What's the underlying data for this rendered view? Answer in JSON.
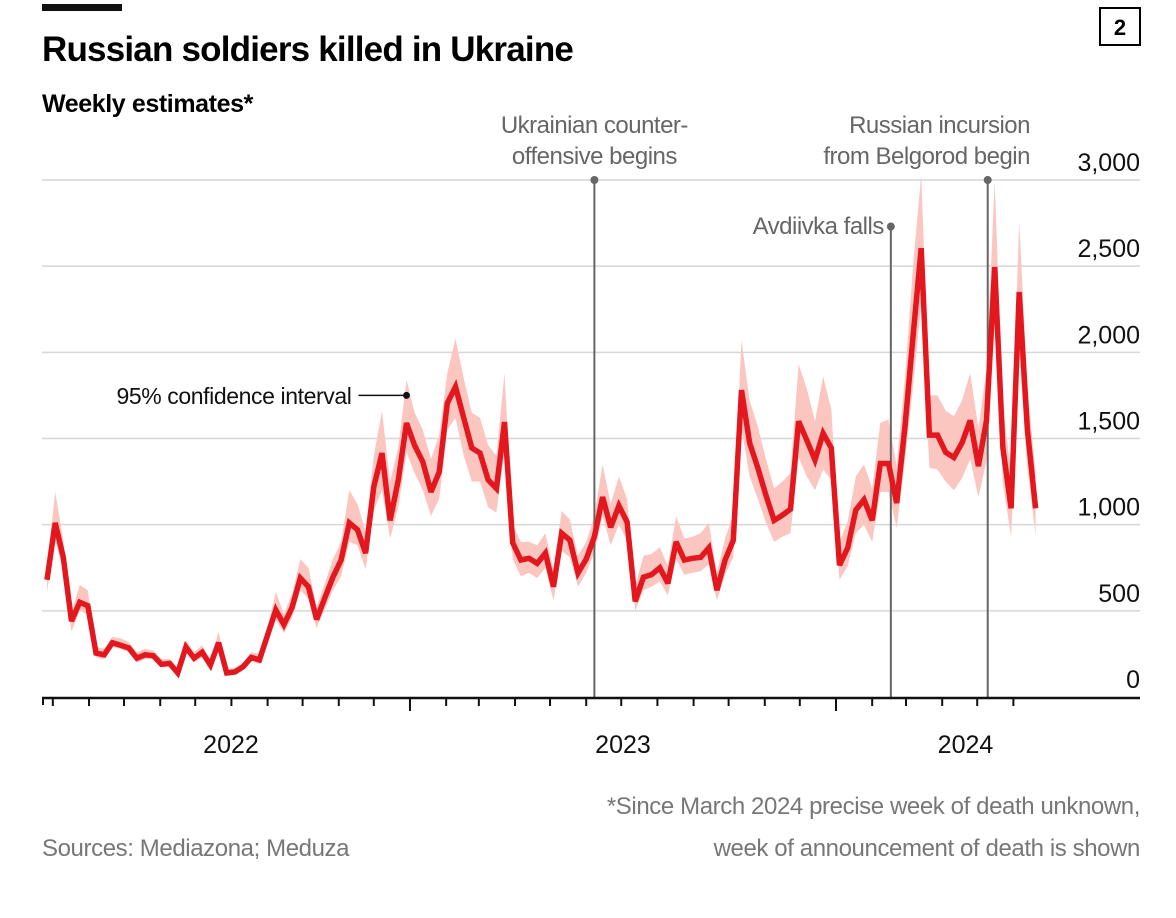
{
  "header": {
    "title": "Russian soldiers killed in Ukraine",
    "subtitle": "Weekly estimates*",
    "badge": "2"
  },
  "footer": {
    "source": "Sources: Mediazona; Meduza",
    "note_line1": "*Since March 2024 precise week of death unknown,",
    "note_line2": "week of announcement of death is shown"
  },
  "annotations": {
    "counteroffensive": {
      "line1": "Ukrainian counter-",
      "line2": "offensive begins",
      "date": "2023-06-08",
      "value": 3000
    },
    "avdiivka": {
      "text": "Avdiivka falls",
      "date": "2024-02-17",
      "value": 2730
    },
    "belgorod": {
      "line1": "Russian incursion",
      "line2": "from Belgorod begin",
      "date": "2024-05-10",
      "value": 3000
    },
    "ci": {
      "text": "95% confidence interval",
      "date": "2022-12-29",
      "value": 1750
    }
  },
  "colors": {
    "line": "#e3181f",
    "band": "#fcc6c0",
    "grid": "#d6d6d6",
    "annotation": "#666666"
  },
  "chart_data": {
    "type": "line",
    "title": "Russian soldiers killed in Ukraine",
    "subtitle": "Weekly estimates*",
    "ylim": [
      0,
      3000
    ],
    "yticks": [
      0,
      500,
      1000,
      1500,
      2000,
      2500,
      3000
    ],
    "ytick_labels": [
      "0",
      "500",
      "1,000",
      "1,500",
      "2,000",
      "2,500",
      "3,000"
    ],
    "xtick_labels": [
      "2022",
      "2023",
      "2024"
    ],
    "grid": "horizontal",
    "y_axis_side": "right",
    "x": [
      "2022-02-24",
      "2022-03-03",
      "2022-03-10",
      "2022-03-17",
      "2022-03-24",
      "2022-03-31",
      "2022-04-07",
      "2022-04-14",
      "2022-04-21",
      "2022-04-28",
      "2022-05-05",
      "2022-05-12",
      "2022-05-19",
      "2022-05-26",
      "2022-06-02",
      "2022-06-09",
      "2022-06-16",
      "2022-06-23",
      "2022-06-30",
      "2022-07-07",
      "2022-07-14",
      "2022-07-21",
      "2022-07-28",
      "2022-08-04",
      "2022-08-11",
      "2022-08-18",
      "2022-08-25",
      "2022-09-01",
      "2022-09-08",
      "2022-09-15",
      "2022-09-22",
      "2022-09-29",
      "2022-10-06",
      "2022-10-13",
      "2022-10-20",
      "2022-10-27",
      "2022-11-03",
      "2022-11-10",
      "2022-11-17",
      "2022-11-24",
      "2022-12-01",
      "2022-12-08",
      "2022-12-15",
      "2022-12-22",
      "2022-12-29",
      "2023-01-05",
      "2023-01-12",
      "2023-01-19",
      "2023-01-26",
      "2023-02-02",
      "2023-02-09",
      "2023-02-16",
      "2023-02-23",
      "2023-03-02",
      "2023-03-09",
      "2023-03-16",
      "2023-03-23",
      "2023-03-30",
      "2023-04-06",
      "2023-04-13",
      "2023-04-20",
      "2023-04-27",
      "2023-05-04",
      "2023-05-11",
      "2023-05-18",
      "2023-05-25",
      "2023-06-01",
      "2023-06-08",
      "2023-06-15",
      "2023-06-22",
      "2023-06-29",
      "2023-07-06",
      "2023-07-13",
      "2023-07-20",
      "2023-07-27",
      "2023-08-03",
      "2023-08-10",
      "2023-08-17",
      "2023-08-24",
      "2023-08-31",
      "2023-09-07",
      "2023-09-14",
      "2023-09-21",
      "2023-09-28",
      "2023-10-05",
      "2023-10-12",
      "2023-10-19",
      "2023-10-26",
      "2023-11-02",
      "2023-11-09",
      "2023-11-16",
      "2023-11-23",
      "2023-11-30",
      "2023-12-07",
      "2023-12-14",
      "2023-12-21",
      "2023-12-28",
      "2024-01-04",
      "2024-01-11",
      "2024-01-18",
      "2024-01-25",
      "2024-02-01",
      "2024-02-08",
      "2024-02-15",
      "2024-02-22",
      "2024-02-29",
      "2024-03-07",
      "2024-03-14",
      "2024-03-21",
      "2024-03-28",
      "2024-04-04",
      "2024-04-11",
      "2024-04-18",
      "2024-04-25",
      "2024-05-02",
      "2024-05-09",
      "2024-05-16",
      "2024-05-23",
      "2024-05-30",
      "2024-06-06",
      "2024-06-13",
      "2024-06-20"
    ],
    "series": [
      {
        "values": [
          680,
          1010,
          810,
          440,
          550,
          530,
          255,
          245,
          315,
          300,
          285,
          225,
          245,
          240,
          190,
          195,
          140,
          290,
          225,
          260,
          185,
          315,
          140,
          145,
          175,
          230,
          215,
          360,
          505,
          420,
          520,
          690,
          640,
          450,
          575,
          695,
          795,
          1010,
          970,
          835,
          1220,
          1415,
          1025,
          1260,
          1590,
          1460,
          1365,
          1190,
          1305,
          1705,
          1800,
          1620,
          1445,
          1415,
          1260,
          1210,
          1595,
          895,
          795,
          805,
          775,
          835,
          640,
          950,
          910,
          720,
          800,
          930,
          1160,
          985,
          1110,
          1015,
          555,
          695,
          710,
          750,
          660,
          900,
          795,
          805,
          810,
          865,
          620,
          795,
          910,
          1780,
          1475,
          1330,
          1170,
          1025,
          1055,
          1090,
          1600,
          1490,
          1375,
          1530,
          1445,
          765,
          865,
          1085,
          1145,
          1025,
          1355,
          1355,
          1125,
          1565,
          2090,
          2605,
          1520,
          1520,
          1420,
          1390,
          1475,
          1605,
          1340,
          1605,
          2495,
          1445,
          1095,
          2350,
          1550,
          1095
        ],
        "ci_lower": [
          610,
          910,
          730,
          380,
          500,
          480,
          230,
          220,
          290,
          280,
          260,
          200,
          220,
          220,
          170,
          180,
          120,
          260,
          200,
          230,
          160,
          280,
          120,
          130,
          160,
          210,
          190,
          320,
          450,
          370,
          460,
          620,
          570,
          400,
          510,
          620,
          700,
          900,
          880,
          740,
          1080,
          1200,
          920,
          1100,
          1420,
          1300,
          1200,
          1050,
          1150,
          1550,
          1620,
          1400,
          1250,
          1250,
          1100,
          1070,
          1420,
          800,
          700,
          720,
          690,
          750,
          560,
          850,
          810,
          640,
          720,
          840,
          1050,
          880,
          1000,
          910,
          500,
          620,
          640,
          670,
          590,
          800,
          710,
          720,
          730,
          770,
          560,
          710,
          810,
          1560,
          1280,
          1150,
          1010,
          900,
          930,
          950,
          1390,
          1280,
          1200,
          1320,
          1260,
          680,
          760,
          950,
          1000,
          900,
          1190,
          1190,
          980,
          1370,
          1800,
          2280,
          1330,
          1320,
          1250,
          1200,
          1270,
          1380,
          1160,
          1370,
          2170,
          1240,
          930,
          2000,
          1330,
          940
        ],
        "ci_upper": [
          760,
          1190,
          910,
          490,
          650,
          620,
          290,
          280,
          350,
          340,
          320,
          260,
          280,
          270,
          220,
          220,
          170,
          330,
          260,
          300,
          210,
          380,
          160,
          170,
          200,
          260,
          250,
          400,
          610,
          480,
          600,
          800,
          750,
          520,
          660,
          800,
          900,
          1200,
          1120,
          960,
          1400,
          1660,
          1250,
          1450,
          1840,
          1650,
          1550,
          1380,
          1520,
          1880,
          2080,
          1850,
          1650,
          1620,
          1460,
          1400,
          1880,
          1000,
          900,
          900,
          880,
          950,
          740,
          1080,
          1030,
          820,
          900,
          1050,
          1350,
          1120,
          1280,
          1150,
          640,
          820,
          830,
          870,
          760,
          1050,
          920,
          930,
          950,
          1010,
          720,
          920,
          1060,
          2070,
          1720,
          1570,
          1380,
          1210,
          1250,
          1300,
          1930,
          1790,
          1600,
          1860,
          1670,
          900,
          1020,
          1280,
          1350,
          1210,
          1590,
          1610,
          1340,
          1850,
          2500,
          3030,
          1750,
          1750,
          1660,
          1630,
          1720,
          1880,
          1560,
          1900,
          2990,
          1690,
          1300,
          2760,
          1800,
          1300
        ]
      }
    ]
  }
}
